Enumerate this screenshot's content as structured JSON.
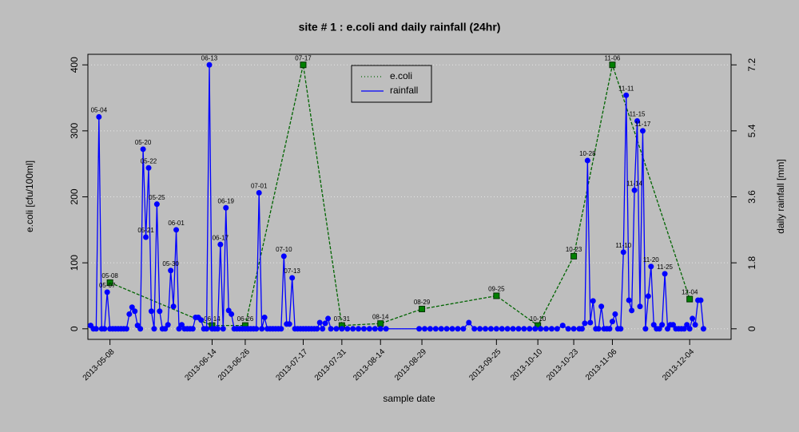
{
  "chart_data": {
    "type": "line",
    "title": "site # 1 : e.coli and daily rainfall (24hr)",
    "x_label": "sample date",
    "y_label": "e.coli [cfu/100ml]",
    "y2_label": "daily rainfall [mm]",
    "xlim": [
      "2013-04-30",
      "2013-12-19"
    ],
    "xticks": [
      "2013-05-08",
      "2013-06-14",
      "2013-06-26",
      "2013-07-17",
      "2013-07-31",
      "2013-08-14",
      "2013-08-29",
      "2013-09-25",
      "2013-10-10",
      "2013-10-23",
      "2013-11-06",
      "2013-12-04"
    ],
    "ylim": [
      -16,
      416
    ],
    "yticks": [
      0,
      100,
      200,
      300,
      400
    ],
    "y2lim": [
      -0.288,
      7.488
    ],
    "y2ticks": [
      0,
      1.8,
      3.6,
      5.4,
      7.2
    ],
    "grid": true,
    "legend": "top",
    "series": [
      {
        "name": "e.coli",
        "color": "#006400",
        "marker_color": "#008000",
        "line_style": "dashed",
        "marker": "square",
        "x": [
          "2013-05-08",
          "2013-06-14",
          "2013-06-26",
          "2013-07-17",
          "2013-07-31",
          "2013-08-14",
          "2013-08-29",
          "2013-09-25",
          "2013-10-10",
          "2013-10-23",
          "2013-11-06",
          "2013-12-04"
        ],
        "values": [
          70,
          5,
          5,
          400,
          5,
          8,
          30,
          50,
          5,
          110,
          400,
          45
        ],
        "labels": [
          "05-08",
          "06-14",
          "06-26",
          "07-17",
          "07-31",
          "08-14",
          "08-29",
          "09-25",
          "10-10",
          "10-23",
          "11-06",
          "12-04"
        ]
      },
      {
        "name": "rainfall",
        "color": "#0000ff",
        "marker_color": "#0000ff",
        "line_style": "solid",
        "marker": "circle",
        "axis": "y2",
        "x": [
          "2013-05-01",
          "2013-05-02",
          "2013-05-03",
          "2013-05-04",
          "2013-05-05",
          "2013-05-06",
          "2013-05-07",
          "2013-05-08",
          "2013-05-09",
          "2013-05-10",
          "2013-05-11",
          "2013-05-12",
          "2013-05-13",
          "2013-05-14",
          "2013-05-15",
          "2013-05-16",
          "2013-05-17",
          "2013-05-18",
          "2013-05-19",
          "2013-05-20",
          "2013-05-21",
          "2013-05-22",
          "2013-05-23",
          "2013-05-24",
          "2013-05-25",
          "2013-05-26",
          "2013-05-27",
          "2013-05-28",
          "2013-05-29",
          "2013-05-30",
          "2013-05-31",
          "2013-06-01",
          "2013-06-02",
          "2013-06-03",
          "2013-06-04",
          "2013-06-05",
          "2013-06-06",
          "2013-06-07",
          "2013-06-08",
          "2013-06-09",
          "2013-06-10",
          "2013-06-11",
          "2013-06-12",
          "2013-06-13",
          "2013-06-14",
          "2013-06-15",
          "2013-06-16",
          "2013-06-17",
          "2013-06-18",
          "2013-06-19",
          "2013-06-20",
          "2013-06-21",
          "2013-06-22",
          "2013-06-23",
          "2013-06-24",
          "2013-06-25",
          "2013-06-26",
          "2013-06-27",
          "2013-06-28",
          "2013-06-29",
          "2013-06-30",
          "2013-07-01",
          "2013-07-02",
          "2013-07-03",
          "2013-07-04",
          "2013-07-05",
          "2013-07-06",
          "2013-07-07",
          "2013-07-08",
          "2013-07-09",
          "2013-07-10",
          "2013-07-11",
          "2013-07-12",
          "2013-07-13",
          "2013-07-14",
          "2013-07-15",
          "2013-07-16",
          "2013-07-17",
          "2013-07-18",
          "2013-07-19",
          "2013-07-20",
          "2013-07-21",
          "2013-07-22",
          "2013-07-23",
          "2013-07-24",
          "2013-07-25",
          "2013-07-26",
          "2013-07-27",
          "2013-07-29",
          "2013-07-31",
          "2013-08-02",
          "2013-08-04",
          "2013-08-06",
          "2013-08-08",
          "2013-08-10",
          "2013-08-12",
          "2013-08-14",
          "2013-08-16",
          "2013-08-28",
          "2013-08-30",
          "2013-09-01",
          "2013-09-03",
          "2013-09-05",
          "2013-09-07",
          "2013-09-09",
          "2013-09-11",
          "2013-09-13",
          "2013-09-15",
          "2013-09-17",
          "2013-09-19",
          "2013-09-21",
          "2013-09-23",
          "2013-09-25",
          "2013-09-27",
          "2013-09-29",
          "2013-10-01",
          "2013-10-03",
          "2013-10-05",
          "2013-10-07",
          "2013-10-09",
          "2013-10-11",
          "2013-10-13",
          "2013-10-15",
          "2013-10-17",
          "2013-10-19",
          "2013-10-21",
          "2013-10-23",
          "2013-10-25",
          "2013-10-26",
          "2013-10-27",
          "2013-10-28",
          "2013-10-29",
          "2013-10-30",
          "2013-10-31",
          "2013-11-01",
          "2013-11-02",
          "2013-11-03",
          "2013-11-04",
          "2013-11-05",
          "2013-11-06",
          "2013-11-07",
          "2013-11-08",
          "2013-11-09",
          "2013-11-10",
          "2013-11-11",
          "2013-11-12",
          "2013-11-13",
          "2013-11-14",
          "2013-11-15",
          "2013-11-16",
          "2013-11-17",
          "2013-11-18",
          "2013-11-19",
          "2013-11-20",
          "2013-11-21",
          "2013-11-22",
          "2013-11-23",
          "2013-11-24",
          "2013-11-25",
          "2013-11-26",
          "2013-11-27",
          "2013-11-28",
          "2013-11-29",
          "2013-11-30",
          "2013-12-01",
          "2013-12-02",
          "2013-12-03",
          "2013-12-04",
          "2013-12-05",
          "2013-12-06",
          "2013-12-07",
          "2013-12-08",
          "2013-12-09"
        ],
        "values": [
          0.09,
          0,
          0,
          5.78,
          0,
          0,
          1.0,
          0,
          0,
          0,
          0,
          0,
          0,
          0,
          0.4,
          0.59,
          0.48,
          0.09,
          0,
          4.9,
          2.5,
          4.39,
          0.48,
          0,
          3.4,
          0.48,
          0,
          0,
          0.11,
          1.59,
          0.61,
          2.7,
          0,
          0.11,
          0,
          0,
          0,
          0,
          0.31,
          0.31,
          0.24,
          0,
          0,
          7.2,
          0,
          0,
          0,
          2.3,
          0,
          3.3,
          0.5,
          0.4,
          0,
          0,
          0,
          0,
          0,
          0,
          0,
          0,
          0,
          3.71,
          0,
          0.31,
          0,
          0,
          0,
          0,
          0,
          0,
          1.98,
          0.13,
          0.13,
          1.39,
          0,
          0,
          0,
          0,
          0,
          0,
          0,
          0,
          0,
          0.17,
          0,
          0.15,
          0.28,
          0,
          0,
          0,
          0,
          0,
          0,
          0,
          0,
          0,
          0,
          0,
          0,
          0,
          0,
          0,
          0,
          0,
          0,
          0,
          0,
          0.17,
          0,
          0,
          0,
          0,
          0,
          0,
          0,
          0,
          0,
          0,
          0,
          0,
          0,
          0,
          0,
          0,
          0.09,
          0,
          0,
          0,
          0,
          0.15,
          4.59,
          0.17,
          0.76,
          0,
          0,
          0.61,
          0,
          0,
          0,
          0.2,
          0.4,
          0,
          0,
          2.09,
          6.37,
          0.78,
          0.5,
          3.78,
          5.67,
          0.61,
          5.4,
          0,
          0.89,
          1.7,
          0.11,
          0,
          0,
          0.11,
          1.5,
          0,
          0.11,
          0.11,
          0,
          0,
          0,
          0,
          0.11,
          0,
          0.28,
          0.11,
          0.78,
          0.78,
          0
        ],
        "labels": [
          null,
          null,
          null,
          "05-04",
          null,
          null,
          "05-07",
          null,
          null,
          null,
          null,
          null,
          null,
          null,
          null,
          null,
          null,
          null,
          null,
          "05-20",
          "05-21",
          "05-22",
          null,
          null,
          "05-25",
          null,
          null,
          null,
          null,
          "05-30",
          null,
          "06-01",
          null,
          null,
          null,
          null,
          null,
          null,
          null,
          null,
          null,
          null,
          null,
          "06-13",
          null,
          null,
          null,
          "06-17",
          null,
          "06-19",
          null,
          null,
          null,
          null,
          null,
          null,
          null,
          null,
          null,
          null,
          null,
          "07-01",
          null,
          null,
          null,
          null,
          null,
          null,
          null,
          null,
          "07-10",
          null,
          null,
          "07-13",
          null,
          null,
          null,
          null,
          null,
          null,
          null,
          null,
          null,
          null,
          null,
          null,
          null,
          null,
          null,
          null,
          null,
          null,
          null,
          null,
          null,
          null,
          null,
          null,
          null,
          null,
          null,
          null,
          null,
          null,
          null,
          null,
          null,
          null,
          null,
          null,
          null,
          null,
          null,
          null,
          null,
          null,
          null,
          null,
          null,
          null,
          null,
          null,
          null,
          null,
          null,
          null,
          null,
          null,
          null,
          null,
          "10-28",
          null,
          null,
          null,
          null,
          null,
          null,
          null,
          null,
          null,
          null,
          null,
          null,
          "11-10",
          "11-11",
          null,
          null,
          "11-14",
          "11-15",
          null,
          "11-17",
          null,
          null,
          "11-20",
          null,
          null,
          null,
          null,
          "11-25",
          null,
          null,
          null,
          null,
          null,
          null,
          null,
          null,
          null,
          null,
          null,
          null,
          null,
          null
        ]
      }
    ]
  }
}
